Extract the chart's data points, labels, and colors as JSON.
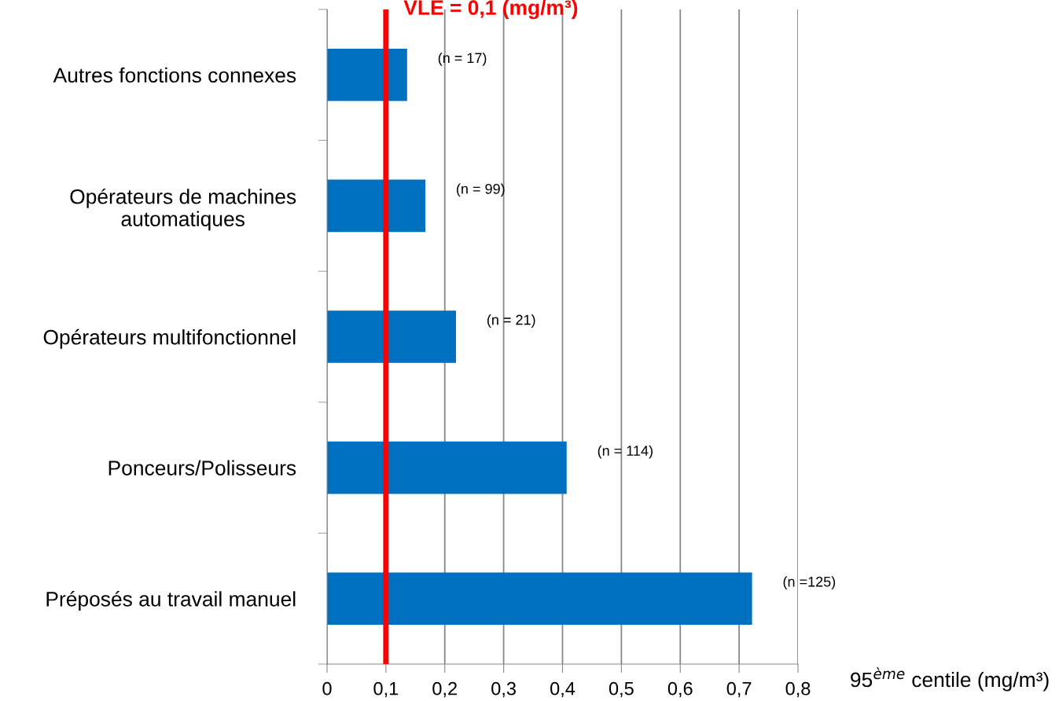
{
  "chart_data": {
    "type": "bar",
    "orientation": "horizontal",
    "xlabel": "95$^{ème}$ centile (mg/m³)",
    "categories": [
      "Autres fonctions connexes",
      "Opérateurs de machines\nautomatiques",
      "Opérateurs multifonctionnel",
      "Ponceurs/Polisseurs",
      "Préposés au travail manuel"
    ],
    "values": [
      0.136,
      0.167,
      0.219,
      0.407,
      0.722
    ],
    "annotations": [
      {
        "text": "(n = 17)",
        "x": 0.136,
        "y": "Autres fonctions connexes"
      },
      {
        "text": "(n = 99)",
        "x": 0.167,
        "y": "Opérateurs de machines\nautomatiques"
      },
      {
        "text": "(n = 21)",
        "x": 0.219,
        "y": "Opérateurs multifonctionnel"
      },
      {
        "text": "(n = 114)",
        "x": 0.407,
        "y": "Ponceurs/Polisseurs"
      },
      {
        "text": "(n =125)",
        "x": 0.722,
        "y": "Préposés au travail manuel"
      }
    ],
    "color": "#0070c0",
    "xlim": [
      0,
      0.8
    ],
    "xticks": [
      0,
      {
        "value": 0.1,
        "label": "0,1"
      },
      {
        "value": 0.2,
        "label": "0,2"
      },
      {
        "value": 0.3,
        "label": "0,3"
      },
      {
        "value": 0.4,
        "label": "0,4"
      },
      {
        "value": 0.5,
        "label": "0,5"
      },
      {
        "value": 0.6,
        "label": "0,6"
      },
      {
        "value": 0.7,
        "label": "0,7"
      },
      {
        "value": 0.8,
        "label": "0,8"
      }
    ],
    "ref_lines": [
      {
        "axis": "x",
        "value": 0.1,
        "label": "VLE = 0,1 (mg/m³)",
        "color": "#ff0000"
      }
    ],
    "grid": "x"
  }
}
